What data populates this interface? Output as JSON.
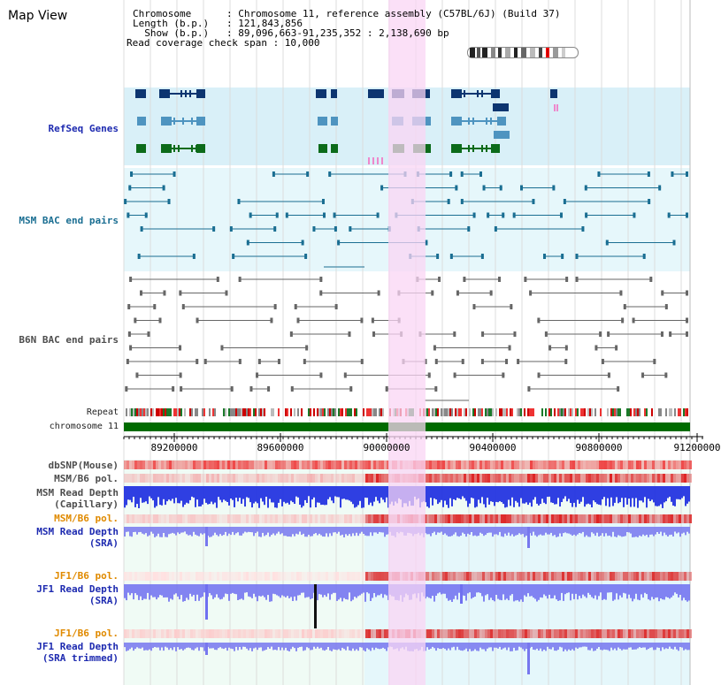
{
  "header": {
    "title": "Map View",
    "chromosome_line": "Chromosome      : Chromosome 11, reference assembly (C57BL/6J) (Build 37)",
    "length_line": "Length (b.p.)   : 121,843,856",
    "show_line": "  Show (b.p.)   : 89,096,663-91,235,352 : 2,138,690 bp",
    "coverage_line": "Read coverage check span : 10,000"
  },
  "tracks": {
    "refseq": "RefSeq Genes",
    "msm_bac": "MSM BAC end pairs",
    "b6n_bac": "B6N BAC end pairs",
    "repeat": "Repeat",
    "chromosome": "chromosome 11",
    "dbsnp": "dbSNP(Mouse)",
    "msm_b6_pol_1": "MSM/B6 pol.",
    "msm_read_depth_cap": "MSM Read Depth\n(Capillary)",
    "msm_b6_pol_2": "MSM/B6 pol.",
    "msm_read_depth_sra": "MSM Read Depth\n(SRA)",
    "jf1_b6_pol_1": "JF1/B6 pol.",
    "jf1_read_depth_sra": "JF1 Read Depth\n(SRA)",
    "jf1_b6_pol_2": "JF1/B6 pol.",
    "jf1_read_depth_trim": "JF1 Read Depth\n(SRA trimmed)"
  },
  "axis": {
    "ticks": [
      "89200000",
      "89600000",
      "90000000",
      "90400000",
      "90800000",
      "91200000"
    ]
  },
  "colors": {
    "refseq_bg": "#d9f0f8",
    "msm_bg": "#e6f7fb",
    "highlight": "#f9d5f4",
    "refseq_dark": "#0d3570",
    "refseq_mid": "#4e94c0",
    "refseq_green": "#0c6b1a",
    "bac_teal": "#1a6e92",
    "bac_gray": "#666666",
    "chromosome": "#006b00",
    "depth_blue": "#3333ee"
  }
}
